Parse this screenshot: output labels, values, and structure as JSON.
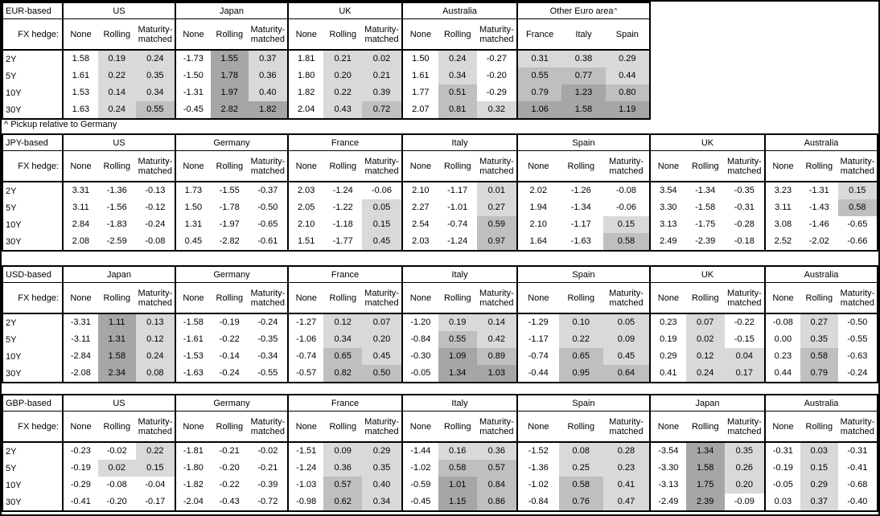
{
  "footnote": "^ Pickup relative to Germany",
  "shared": {
    "hedge_label": "FX hedge:",
    "hedge_cols": [
      "None",
      "Rolling",
      "Maturity-matched"
    ],
    "tenors": [
      "2Y",
      "5Y",
      "10Y",
      "30Y"
    ]
  },
  "colors": {
    "shade_light": "#d9d9d9",
    "shade_medium": "#bfbfbf",
    "shade_dark": "#a6a6a6",
    "border": "#000000",
    "background": "#ffffff",
    "text": "#000000"
  },
  "tables": [
    {
      "base": "EUR-based",
      "groups": [
        {
          "name": "US",
          "rows": [
            [
              "1.58",
              "0.19",
              "0.24"
            ],
            [
              "1.61",
              "0.22",
              "0.35"
            ],
            [
              "1.53",
              "0.14",
              "0.34"
            ],
            [
              "1.63",
              "0.24",
              "0.55"
            ]
          ]
        },
        {
          "name": "Japan",
          "rows": [
            [
              "-1.73",
              "1.55",
              "0.37"
            ],
            [
              "-1.50",
              "1.78",
              "0.36"
            ],
            [
              "-1.31",
              "1.97",
              "0.40"
            ],
            [
              "-0.45",
              "2.82",
              "1.82"
            ]
          ]
        },
        {
          "name": "UK",
          "rows": [
            [
              "1.81",
              "0.21",
              "0.02"
            ],
            [
              "1.80",
              "0.20",
              "0.21"
            ],
            [
              "1.82",
              "0.22",
              "0.39"
            ],
            [
              "2.04",
              "0.43",
              "0.72"
            ]
          ]
        },
        {
          "name": "Australia",
          "rows": [
            [
              "1.50",
              "0.24",
              "-0.27"
            ],
            [
              "1.61",
              "0.34",
              "-0.20"
            ],
            [
              "1.77",
              "0.51",
              "-0.29"
            ],
            [
              "2.07",
              "0.81",
              "0.32"
            ]
          ]
        },
        {
          "name": "Other Euro area",
          "sup": "^",
          "country_cols": [
            "France",
            "Italy",
            "Spain"
          ],
          "rows": [
            [
              "0.31",
              "0.38",
              "0.29"
            ],
            [
              "0.55",
              "0.77",
              "0.44"
            ],
            [
              "0.79",
              "1.23",
              "0.80"
            ],
            [
              "1.06",
              "1.58",
              "1.19"
            ]
          ]
        }
      ]
    },
    {
      "base": "JPY-based",
      "groups": [
        {
          "name": "US",
          "rows": [
            [
              "3.31",
              "-1.36",
              "-0.13"
            ],
            [
              "3.11",
              "-1.56",
              "-0.12"
            ],
            [
              "2.84",
              "-1.83",
              "-0.24"
            ],
            [
              "2.08",
              "-2.59",
              "-0.08"
            ]
          ]
        },
        {
          "name": "Germany",
          "rows": [
            [
              "1.73",
              "-1.55",
              "-0.37"
            ],
            [
              "1.50",
              "-1.78",
              "-0.50"
            ],
            [
              "1.31",
              "-1.97",
              "-0.65"
            ],
            [
              "0.45",
              "-2.82",
              "-0.61"
            ]
          ]
        },
        {
          "name": "France",
          "rows": [
            [
              "2.03",
              "-1.24",
              "-0.06"
            ],
            [
              "2.05",
              "-1.22",
              "0.05"
            ],
            [
              "2.10",
              "-1.18",
              "0.15"
            ],
            [
              "1.51",
              "-1.77",
              "0.45"
            ]
          ]
        },
        {
          "name": "Italy",
          "rows": [
            [
              "2.10",
              "-1.17",
              "0.01"
            ],
            [
              "2.27",
              "-1.01",
              "0.27"
            ],
            [
              "2.54",
              "-0.74",
              "0.59"
            ],
            [
              "2.03",
              "-1.24",
              "0.97"
            ]
          ]
        },
        {
          "name": "Spain",
          "rows": [
            [
              "2.02",
              "-1.26",
              "-0.08"
            ],
            [
              "1.94",
              "-1.34",
              "-0.06"
            ],
            [
              "2.10",
              "-1.17",
              "0.15"
            ],
            [
              "1.64",
              "-1.63",
              "0.58"
            ]
          ]
        },
        {
          "name": "UK",
          "rows": [
            [
              "3.54",
              "-1.34",
              "-0.35"
            ],
            [
              "3.30",
              "-1.58",
              "-0.31"
            ],
            [
              "3.13",
              "-1.75",
              "-0.28"
            ],
            [
              "2.49",
              "-2.39",
              "-0.18"
            ]
          ]
        },
        {
          "name": "Australia",
          "rows": [
            [
              "3.23",
              "-1.31",
              "0.15"
            ],
            [
              "3.11",
              "-1.43",
              "0.58"
            ],
            [
              "3.08",
              "-1.46",
              "-0.65"
            ],
            [
              "2.52",
              "-2.02",
              "-0.66"
            ]
          ]
        }
      ]
    },
    {
      "base": "USD-based",
      "groups": [
        {
          "name": "Japan",
          "rows": [
            [
              "-3.31",
              "1.11",
              "0.13"
            ],
            [
              "-3.11",
              "1.31",
              "0.12"
            ],
            [
              "-2.84",
              "1.58",
              "0.24"
            ],
            [
              "-2.08",
              "2.34",
              "0.08"
            ]
          ]
        },
        {
          "name": "Germany",
          "rows": [
            [
              "-1.58",
              "-0.19",
              "-0.24"
            ],
            [
              "-1.61",
              "-0.22",
              "-0.35"
            ],
            [
              "-1.53",
              "-0.14",
              "-0.34"
            ],
            [
              "-1.63",
              "-0.24",
              "-0.55"
            ]
          ]
        },
        {
          "name": "France",
          "rows": [
            [
              "-1.27",
              "0.12",
              "0.07"
            ],
            [
              "-1.06",
              "0.34",
              "0.20"
            ],
            [
              "-0.74",
              "0.65",
              "0.45"
            ],
            [
              "-0.57",
              "0.82",
              "0.50"
            ]
          ]
        },
        {
          "name": "Italy",
          "rows": [
            [
              "-1.20",
              "0.19",
              "0.14"
            ],
            [
              "-0.84",
              "0.55",
              "0.42"
            ],
            [
              "-0.30",
              "1.09",
              "0.89"
            ],
            [
              "-0.05",
              "1.34",
              "1.03"
            ]
          ]
        },
        {
          "name": "Spain",
          "rows": [
            [
              "-1.29",
              "0.10",
              "0.05"
            ],
            [
              "-1.17",
              "0.22",
              "0.09"
            ],
            [
              "-0.74",
              "0.65",
              "0.45"
            ],
            [
              "-0.44",
              "0.95",
              "0.64"
            ]
          ]
        },
        {
          "name": "UK",
          "rows": [
            [
              "0.23",
              "0.07",
              "-0.22"
            ],
            [
              "0.19",
              "0.02",
              "-0.15"
            ],
            [
              "0.29",
              "0.12",
              "0.04"
            ],
            [
              "0.41",
              "0.24",
              "0.17"
            ]
          ]
        },
        {
          "name": "Australia",
          "rows": [
            [
              "-0.08",
              "0.27",
              "-0.50"
            ],
            [
              "0.00",
              "0.35",
              "-0.55"
            ],
            [
              "0.23",
              "0.58",
              "-0.63"
            ],
            [
              "0.44",
              "0.79",
              "-0.24"
            ]
          ]
        }
      ]
    },
    {
      "base": "GBP-based",
      "groups": [
        {
          "name": "US",
          "rows": [
            [
              "-0.23",
              "-0.02",
              "0.22"
            ],
            [
              "-0.19",
              "0.02",
              "0.15"
            ],
            [
              "-0.29",
              "-0.08",
              "-0.04"
            ],
            [
              "-0.41",
              "-0.20",
              "-0.17"
            ]
          ]
        },
        {
          "name": "Germany",
          "rows": [
            [
              "-1.81",
              "-0.21",
              "-0.02"
            ],
            [
              "-1.80",
              "-0.20",
              "-0.21"
            ],
            [
              "-1.82",
              "-0.22",
              "-0.39"
            ],
            [
              "-2.04",
              "-0.43",
              "-0.72"
            ]
          ]
        },
        {
          "name": "France",
          "rows": [
            [
              "-1.51",
              "0.09",
              "0.29"
            ],
            [
              "-1.24",
              "0.36",
              "0.35"
            ],
            [
              "-1.03",
              "0.57",
              "0.40"
            ],
            [
              "-0.98",
              "0.62",
              "0.34"
            ]
          ]
        },
        {
          "name": "Italy",
          "rows": [
            [
              "-1.44",
              "0.16",
              "0.36"
            ],
            [
              "-1.02",
              "0.58",
              "0.57"
            ],
            [
              "-0.59",
              "1.01",
              "0.84"
            ],
            [
              "-0.45",
              "1.15",
              "0.86"
            ]
          ]
        },
        {
          "name": "Spain",
          "rows": [
            [
              "-1.52",
              "0.08",
              "0.28"
            ],
            [
              "-1.36",
              "0.25",
              "0.23"
            ],
            [
              "-1.02",
              "0.58",
              "0.41"
            ],
            [
              "-0.84",
              "0.76",
              "0.47"
            ]
          ]
        },
        {
          "name": "Japan",
          "rows": [
            [
              "-3.54",
              "1.34",
              "0.35"
            ],
            [
              "-3.30",
              "1.58",
              "0.26"
            ],
            [
              "-3.13",
              "1.75",
              "0.20"
            ],
            [
              "-2.49",
              "2.39",
              "-0.09"
            ]
          ]
        },
        {
          "name": "Australia",
          "rows": [
            [
              "-0.31",
              "0.03",
              "-0.31"
            ],
            [
              "-0.19",
              "0.15",
              "-0.41"
            ],
            [
              "-0.05",
              "0.29",
              "-0.68"
            ],
            [
              "0.03",
              "0.37",
              "-0.40"
            ]
          ]
        }
      ]
    }
  ]
}
